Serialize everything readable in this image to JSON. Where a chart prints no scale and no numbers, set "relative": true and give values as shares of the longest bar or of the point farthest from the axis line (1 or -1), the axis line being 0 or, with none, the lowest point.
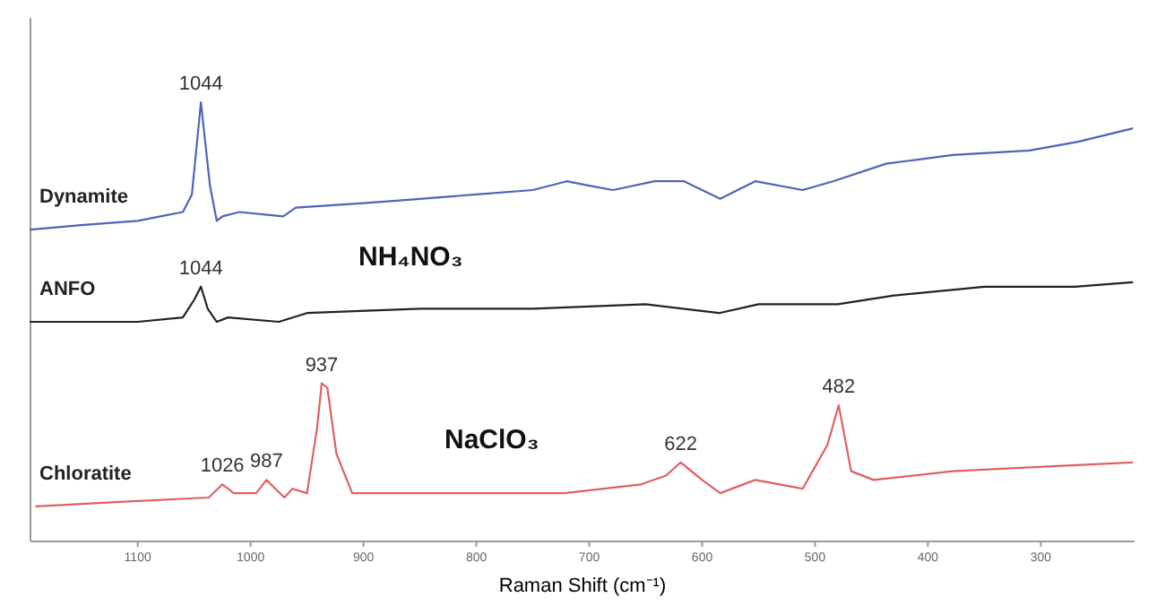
{
  "chart_data": {
    "type": "line",
    "relative": true,
    "xlabel": "Raman Shift (cm⁻¹)",
    "xlim": [
      1195,
      217
    ],
    "xticks": [
      1100,
      1000,
      900,
      800,
      700,
      600,
      500,
      400,
      300
    ],
    "tick_labels": "x",
    "grid": false,
    "marker": "none",
    "line_style": "solid",
    "series": [
      {
        "name": "Dynamite",
        "color": "#4f63b8",
        "x": [
          1195,
          1150,
          1100,
          1080,
          1060,
          1052,
          1044,
          1036,
          1030,
          1025,
          1010,
          971,
          960,
          900,
          850,
          800,
          750,
          720,
          700,
          679,
          642,
          616,
          584,
          553,
          511,
          484,
          437,
          378,
          310,
          267,
          219
        ],
        "values": [
          0.71,
          0.72,
          0.73,
          0.74,
          0.75,
          0.79,
          1,
          0.81,
          0.73,
          0.74,
          0.75,
          0.74,
          0.76,
          0.77,
          0.78,
          0.79,
          0.8,
          0.82,
          0.81,
          0.8,
          0.82,
          0.82,
          0.78,
          0.82,
          0.8,
          0.82,
          0.86,
          0.88,
          0.89,
          0.91,
          0.94
        ]
      },
      {
        "name": "ANFO",
        "color": "#222222",
        "x": [
          1195,
          1100,
          1060,
          1050,
          1044,
          1038,
          1030,
          1020,
          975,
          950,
          850,
          750,
          650,
          585,
          550,
          480,
          430,
          350,
          270,
          219
        ],
        "values": [
          0.5,
          0.5,
          0.51,
          0.55,
          0.58,
          0.53,
          0.5,
          0.51,
          0.5,
          0.52,
          0.53,
          0.53,
          0.54,
          0.52,
          0.54,
          0.54,
          0.56,
          0.58,
          0.58,
          0.59
        ]
      },
      {
        "name": "Chloratite",
        "color": "#e06060",
        "x": [
          1190,
          1116,
          1037,
          1025,
          1015,
          995,
          986,
          970,
          963,
          950,
          941,
          937,
          932,
          924,
          910,
          852,
          746,
          722,
          654,
          632,
          619,
          600,
          584,
          553,
          511,
          489,
          479,
          468,
          448,
          378,
          298,
          219
        ],
        "values": [
          0.08,
          0.09,
          0.1,
          0.13,
          0.11,
          0.11,
          0.14,
          0.1,
          0.12,
          0.11,
          0.26,
          0.36,
          0.35,
          0.2,
          0.11,
          0.11,
          0.11,
          0.11,
          0.13,
          0.15,
          0.18,
          0.14,
          0.11,
          0.14,
          0.12,
          0.22,
          0.31,
          0.16,
          0.14,
          0.16,
          0.17,
          0.18
        ]
      }
    ],
    "annotations": [
      {
        "text": "1044",
        "x": 1044,
        "y": 1
      },
      {
        "text": "1044",
        "x": 1044,
        "y": 0.58
      },
      {
        "text": "1026",
        "x": 1025,
        "y": 0.13
      },
      {
        "text": "987",
        "x": 986,
        "y": 0.14
      },
      {
        "text": "937",
        "x": 937,
        "y": 0.36
      },
      {
        "text": "622",
        "x": 619,
        "y": 0.18
      },
      {
        "text": "482",
        "x": 479,
        "y": 0.31
      },
      "NH₄NO₃",
      "NaClO₃"
    ]
  }
}
